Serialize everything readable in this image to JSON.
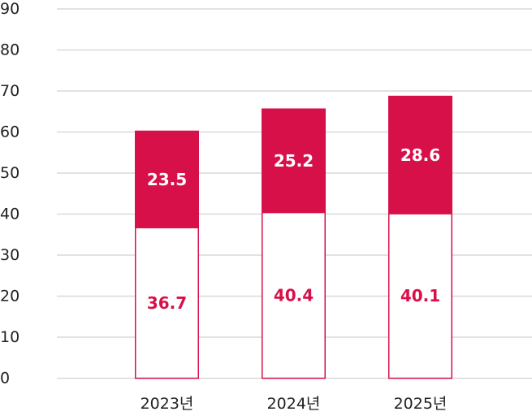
{
  "chart_data": {
    "type": "bar",
    "stacked": true,
    "categories": [
      "2023년",
      "2024년",
      "2025년"
    ],
    "series": [
      {
        "values": [
          36.7,
          40.4,
          40.1
        ],
        "fill": "#ffffff",
        "stroke": "#d8104a",
        "label_color": "#d8104a"
      },
      {
        "values": [
          23.5,
          25.2,
          28.6
        ],
        "fill": "#d8104a",
        "stroke": "#d8104a",
        "label_color": "#ffffff"
      }
    ],
    "title": "",
    "xlabel": "",
    "ylabel": "",
    "ylim": [
      0,
      90
    ],
    "yticks": [
      0,
      10,
      20,
      30,
      40,
      50,
      60,
      70,
      80,
      90
    ],
    "grid": true,
    "legend": "none"
  }
}
